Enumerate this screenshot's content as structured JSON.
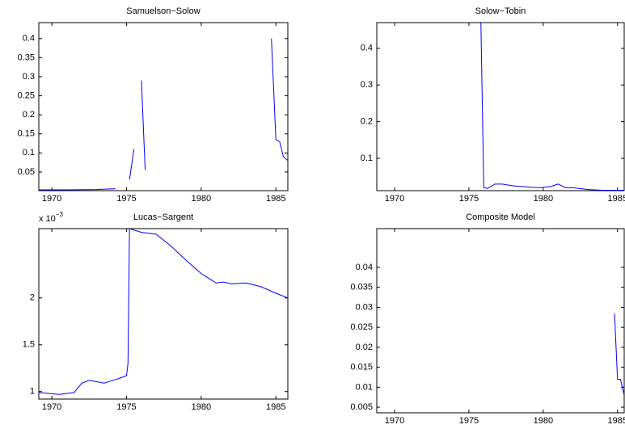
{
  "chart_data": [
    {
      "type": "line",
      "title": "Samuelson−Solow",
      "x": [
        1969.13,
        1971,
        1973,
        1974.25,
        1974.5,
        1975.2,
        1975.5,
        1975.75,
        1976.0,
        1976.25,
        1976.5,
        1984.7,
        1985.0,
        1985.25,
        1985.5,
        1985.8
      ],
      "series": [
        {
          "color": "#0000ff",
          "values": [
            0.003,
            0.003,
            0.004,
            0.006,
            null,
            0.03,
            0.11,
            null,
            0.29,
            0.055,
            null,
            0.4,
            0.135,
            0.13,
            0.09,
            0.08
          ]
        }
      ],
      "xlim": [
        1969.13,
        1985.8
      ],
      "ylim": [
        0.001,
        0.442
      ],
      "xticks": [
        1970,
        1975,
        1980,
        1985
      ],
      "yticks": [
        0.05,
        0.1,
        0.15,
        0.2,
        0.25,
        0.3,
        0.35,
        0.4
      ]
    },
    {
      "type": "line",
      "title": "Solow−Tobin",
      "x": [
        1975.75,
        1976.0,
        1976.25,
        1976.75,
        1977.25,
        1978,
        1979,
        1979.75,
        1980.5,
        1981,
        1981.5,
        1982,
        1983,
        1984,
        1985.45
      ],
      "series": [
        {
          "color": "#0000ff",
          "values": [
            0.6,
            0.02,
            0.018,
            0.03,
            0.03,
            0.025,
            0.022,
            0.02,
            0.023,
            0.03,
            0.02,
            0.02,
            0.015,
            0.013,
            0.013
          ]
        }
      ],
      "xlim": [
        1968.8,
        1985.45
      ],
      "ylim": [
        0.012,
        0.47
      ],
      "xticks": [
        1970,
        1975,
        1980,
        1985
      ],
      "yticks": [
        0.1,
        0.2,
        0.3,
        0.4
      ]
    },
    {
      "type": "line",
      "title": "Lucas−Sargent",
      "y_exponent": "x 10",
      "y_exponent_power": "−3",
      "x": [
        1969.13,
        1970.5,
        1971.5,
        1972,
        1972.5,
        1973.5,
        1974.5,
        1975,
        1975.1,
        1975.2,
        1976,
        1977,
        1978,
        1979,
        1980,
        1981,
        1981.5,
        1982,
        1983,
        1984,
        1985,
        1985.8
      ],
      "series": [
        {
          "color": "#0000ff",
          "values": [
            0.99,
            0.97,
            0.99,
            1.09,
            1.12,
            1.09,
            1.14,
            1.17,
            1.3,
            2.74,
            2.7,
            2.68,
            2.55,
            2.4,
            2.26,
            2.16,
            2.17,
            2.15,
            2.16,
            2.12,
            2.05,
            2.0
          ]
        }
      ],
      "xlim": [
        1969.13,
        1985.8
      ],
      "ylim": [
        0.92,
        2.74
      ],
      "xticks": [
        1970,
        1975,
        1980,
        1985
      ],
      "yticks": [
        1,
        1.5,
        2
      ]
    },
    {
      "type": "line",
      "title": "Composite Model",
      "x": [
        1984.8,
        1985.0,
        1985.2,
        1985.45
      ],
      "series": [
        {
          "color": "#0000ff",
          "values": [
            0.0285,
            0.012,
            0.012,
            0.008
          ]
        }
      ],
      "xlim": [
        1968.8,
        1985.45
      ],
      "ylim": [
        0.0036,
        0.0497
      ],
      "xticks": [
        1970,
        1975,
        1980,
        1985
      ],
      "yticks": [
        0.005,
        0.01,
        0.015,
        0.02,
        0.025,
        0.03,
        0.035,
        0.04
      ]
    }
  ]
}
